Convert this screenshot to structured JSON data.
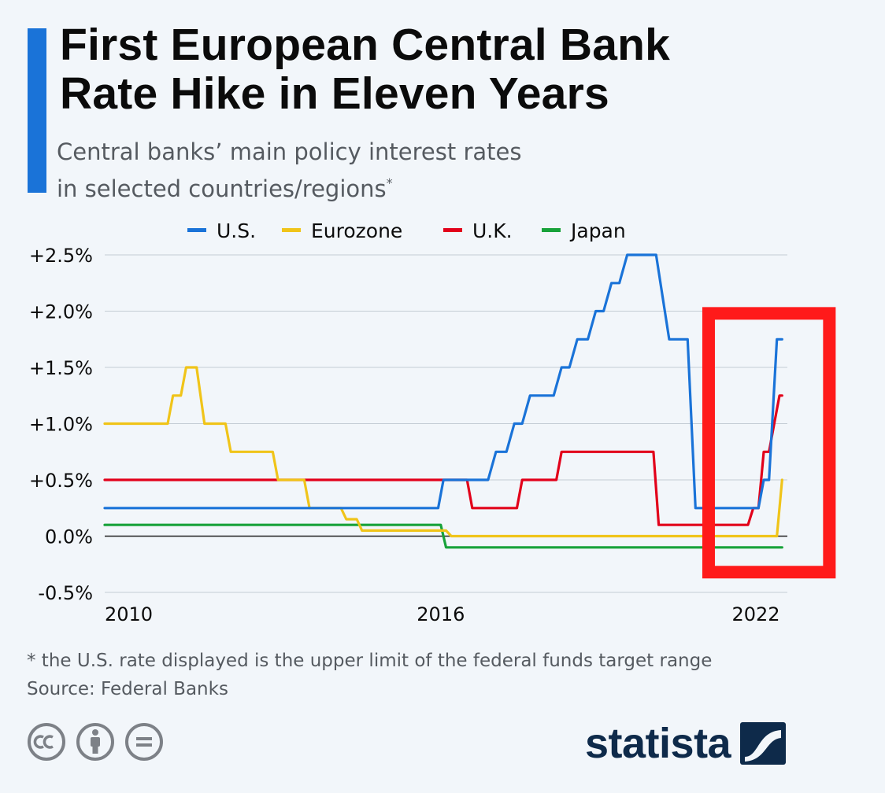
{
  "title_lines": [
    "First European Central Bank",
    "Rate Hike in Eleven Years"
  ],
  "subtitle_lines": [
    "Central banks’ main policy interest rates",
    "in selected countries/regions"
  ],
  "subtitle_marker": "*",
  "footnote": "* the U.S. rate displayed is the upper limit of the federal funds target range",
  "source": "Source: Federal Banks",
  "brand": "statista",
  "colors": {
    "accent": "#1a73d8",
    "us": "#1a73d8",
    "eurozone": "#f0c419",
    "uk": "#e2001a",
    "japan": "#18a23a",
    "highlight": "#ff1a1a",
    "grid": "#c4ccd4",
    "text": "#0b0b0b",
    "muted": "#555a60",
    "brand": "#0e2a4a"
  },
  "icons": [
    "creative-commons-icon",
    "attribution-icon",
    "no-derivatives-icon",
    "statista-logo-icon"
  ],
  "chart_data": {
    "type": "line",
    "title": "First European Central Bank Rate Hike in Eleven Years",
    "xlabel": "",
    "ylabel": "",
    "x_ticks": [
      2010,
      2016,
      2022
    ],
    "x_range": [
      2009.6,
      2022.6
    ],
    "y_range": [
      -0.5,
      2.5
    ],
    "y_ticks": [
      -0.5,
      0.0,
      0.5,
      1.0,
      1.5,
      2.0,
      2.5
    ],
    "y_tick_labels": [
      "-0.5%",
      "0.0%",
      "+0.5%",
      "+1.0%",
      "+1.5%",
      "+2.0%",
      "+2.5%"
    ],
    "legend_position": "top",
    "highlight": {
      "x_range": [
        2021.1,
        2023.4
      ],
      "y_range": [
        -0.32,
        1.98
      ],
      "label": ""
    },
    "series": [
      {
        "name": "U.S.",
        "color_key": "us",
        "points": [
          [
            2009.6,
            0.25
          ],
          [
            2015.95,
            0.25
          ],
          [
            2016.05,
            0.5
          ],
          [
            2016.9,
            0.5
          ],
          [
            2017.05,
            0.75
          ],
          [
            2017.25,
            0.75
          ],
          [
            2017.4,
            1.0
          ],
          [
            2017.55,
            1.0
          ],
          [
            2017.7,
            1.25
          ],
          [
            2018.15,
            1.25
          ],
          [
            2018.3,
            1.5
          ],
          [
            2018.45,
            1.5
          ],
          [
            2018.6,
            1.75
          ],
          [
            2018.8,
            1.75
          ],
          [
            2018.95,
            2.0
          ],
          [
            2019.1,
            2.0
          ],
          [
            2019.25,
            2.25
          ],
          [
            2019.4,
            2.25
          ],
          [
            2019.55,
            2.5
          ],
          [
            2020.1,
            2.5
          ],
          [
            2020.35,
            1.75
          ],
          [
            2020.7,
            1.75
          ],
          [
            2020.85,
            0.25
          ],
          [
            2022.05,
            0.25
          ],
          [
            2022.15,
            0.5
          ],
          [
            2022.25,
            0.5
          ],
          [
            2022.4,
            1.75
          ],
          [
            2022.5,
            1.75
          ]
        ]
      },
      {
        "name": "Eurozone",
        "color_key": "eurozone",
        "points": [
          [
            2009.6,
            1.0
          ],
          [
            2010.8,
            1.0
          ],
          [
            2010.9,
            1.25
          ],
          [
            2011.05,
            1.25
          ],
          [
            2011.15,
            1.5
          ],
          [
            2011.35,
            1.5
          ],
          [
            2011.5,
            1.0
          ],
          [
            2011.9,
            1.0
          ],
          [
            2012.0,
            0.75
          ],
          [
            2012.8,
            0.75
          ],
          [
            2012.9,
            0.5
          ],
          [
            2013.4,
            0.5
          ],
          [
            2013.5,
            0.25
          ],
          [
            2014.1,
            0.25
          ],
          [
            2014.2,
            0.15
          ],
          [
            2014.4,
            0.15
          ],
          [
            2014.5,
            0.05
          ],
          [
            2016.1,
            0.05
          ],
          [
            2016.2,
            0.0
          ],
          [
            2022.4,
            0.0
          ],
          [
            2022.5,
            0.5
          ]
        ]
      },
      {
        "name": "U.K.",
        "color_key": "uk",
        "points": [
          [
            2009.6,
            0.5
          ],
          [
            2016.5,
            0.5
          ],
          [
            2016.6,
            0.25
          ],
          [
            2017.45,
            0.25
          ],
          [
            2017.55,
            0.5
          ],
          [
            2018.2,
            0.5
          ],
          [
            2018.3,
            0.75
          ],
          [
            2020.05,
            0.75
          ],
          [
            2020.15,
            0.1
          ],
          [
            2021.85,
            0.1
          ],
          [
            2021.95,
            0.25
          ],
          [
            2022.05,
            0.25
          ],
          [
            2022.1,
            0.5
          ],
          [
            2022.15,
            0.75
          ],
          [
            2022.25,
            0.75
          ],
          [
            2022.35,
            1.0
          ],
          [
            2022.45,
            1.25
          ],
          [
            2022.5,
            1.25
          ]
        ]
      },
      {
        "name": "Japan",
        "color_key": "japan",
        "points": [
          [
            2009.6,
            0.1
          ],
          [
            2016.0,
            0.1
          ],
          [
            2016.1,
            -0.1
          ],
          [
            2022.5,
            -0.1
          ]
        ]
      }
    ]
  }
}
